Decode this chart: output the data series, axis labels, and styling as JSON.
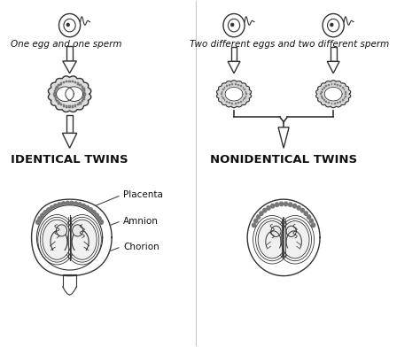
{
  "bg_color": "#ffffff",
  "text_color": "#111111",
  "line_color": "#333333",
  "left_title": "One egg and one sperm",
  "right_title": "Two different eggs and two different sperm",
  "left_label": "IDENTICAL TWINS",
  "right_label": "NONIDENTICAL TWINS",
  "annotations": [
    "Placenta",
    "Amnion",
    "Chorion"
  ],
  "figsize": [
    4.74,
    3.92
  ],
  "dpi": 100
}
